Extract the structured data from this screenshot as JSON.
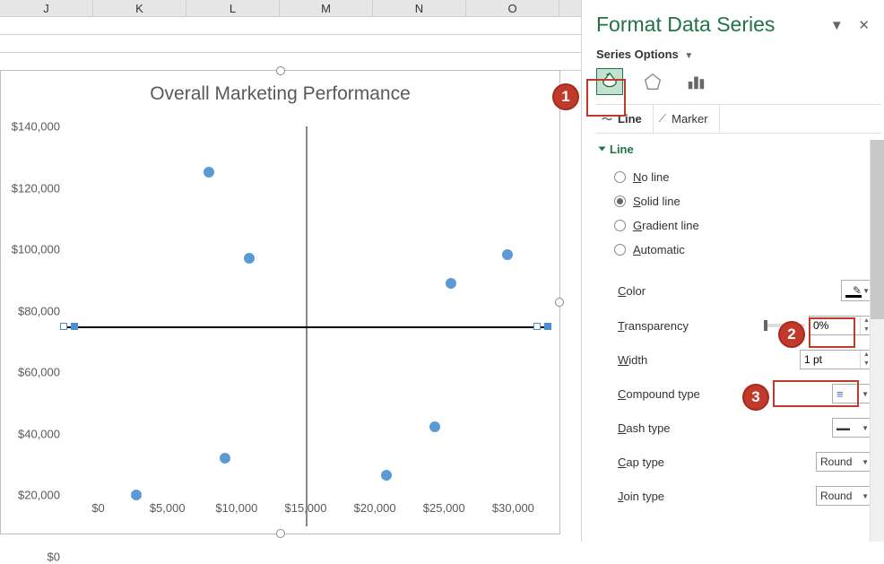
{
  "sheet": {
    "columns": [
      "J",
      "K",
      "L",
      "M",
      "N",
      "O"
    ]
  },
  "chart": {
    "title": "Overall Marketing Performance",
    "y_ticks": [
      "$140,000",
      "$120,000",
      "$100,000",
      "$80,000",
      "$60,000",
      "$40,000",
      "$20,000",
      "$0"
    ],
    "x_ticks": [
      "$0",
      "$5,000",
      "$10,000",
      "$15,000",
      "$20,000",
      "$25,000",
      "$30,000"
    ],
    "x_max": 30000,
    "y_max": 140000,
    "vline_x": 15000,
    "hline_y": 70000,
    "points": [
      {
        "x": 4500,
        "y": 11000
      },
      {
        "x": 9000,
        "y": 124000
      },
      {
        "x": 10000,
        "y": 24000
      },
      {
        "x": 11500,
        "y": 94000
      },
      {
        "x": 20000,
        "y": 18000
      },
      {
        "x": 23000,
        "y": 35000
      },
      {
        "x": 24000,
        "y": 85000
      },
      {
        "x": 27500,
        "y": 95000
      }
    ],
    "point_color": "#5b9bd5"
  },
  "pane": {
    "title": "Format Data Series",
    "series_label": "Series Options",
    "subtabs": {
      "line": "Line",
      "marker": "Marker"
    },
    "section": "Line",
    "radios": {
      "noline": {
        "pre": "N",
        "rest": "o line"
      },
      "solid": {
        "pre": "S",
        "rest": "olid line"
      },
      "gradient": {
        "pre": "G",
        "rest": "radient line"
      },
      "auto": {
        "pre": "A",
        "rest": "utomatic"
      }
    },
    "props": {
      "color_label_pre": "C",
      "color_label_rest": "olor",
      "transparency_pre": "T",
      "transparency_rest": "ransparency",
      "transparency_val": "0%",
      "width_pre": "W",
      "width_rest": "idth",
      "width_val": "1 pt",
      "compound_pre": "C",
      "compound_rest": "ompound type",
      "dash_pre": "D",
      "dash_rest": "ash type",
      "cap_pre": "C",
      "cap_rest": "ap type",
      "cap_val": "Round",
      "join_pre": "J",
      "join_rest": "oin type",
      "join_val": "Round"
    }
  },
  "callouts": [
    "1",
    "2",
    "3"
  ]
}
